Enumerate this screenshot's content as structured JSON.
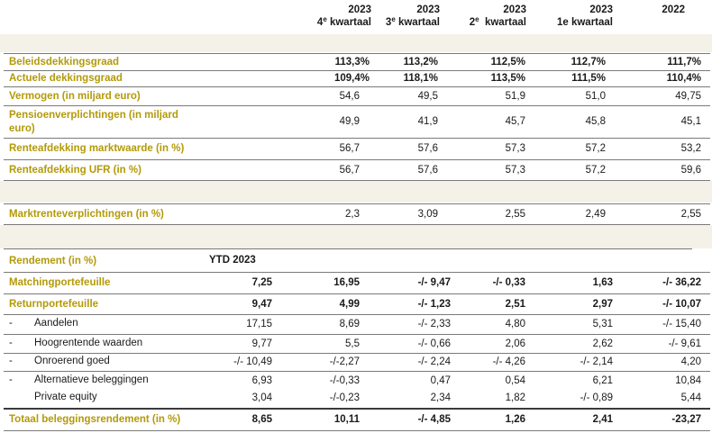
{
  "header": {
    "cols": [
      {
        "year": "2023",
        "quarter_num": "4",
        "quarter_sup": "e",
        "quarter_rest": " kwartaal"
      },
      {
        "year": "2023",
        "quarter_num": "3",
        "quarter_sup": "e",
        "quarter_rest": " kwartaal"
      },
      {
        "year": "2023",
        "quarter_num": "2",
        "quarter_sup": "e",
        "quarter_rest": "  kwartaal"
      },
      {
        "year": "2023",
        "quarter_num": "1e kwartaal",
        "quarter_sup": "",
        "quarter_rest": ""
      },
      {
        "year": "2022",
        "quarter_num": "",
        "quarter_sup": "",
        "quarter_rest": ""
      }
    ]
  },
  "top_rows": [
    {
      "label": "Beleidsdekkingsgraad",
      "values": [
        "113,3%",
        "113,2%",
        "112,5%",
        "112,7%",
        "111,7%"
      ]
    },
    {
      "label": "Actuele dekkingsgraad",
      "values": [
        "109,4%",
        "118,1%",
        "113,5%",
        "111,5%",
        "110,4%"
      ]
    },
    {
      "label": "Vermogen (in miljard euro)",
      "values": [
        "54,6",
        "49,5",
        "51,9",
        "51,0",
        "49,75"
      ]
    },
    {
      "label": "Pensioenverplichtingen (in miljard euro)",
      "label_line1": "Pensioenverplichtingen (in miljard",
      "label_line2": "euro)",
      "values": [
        "49,9",
        "41,9",
        "45,7",
        "45,8",
        "45,1"
      ]
    },
    {
      "label": "Renteafdekking marktwaarde (in %)",
      "values": [
        "56,7",
        "57,6",
        "57,3",
        "57,2",
        "53,2"
      ]
    },
    {
      "label": "Renteafdekking UFR (in %)",
      "values": [
        "56,7",
        "57,6",
        "57,3",
        "57,2",
        "59,6"
      ]
    },
    {
      "label": "Marktrenteverplichtingen (in %)",
      "values": [
        "2,3",
        "3,09",
        "2,55",
        "2,49",
        "2,55"
      ]
    }
  ],
  "rendement": {
    "label": "Rendement (in %)",
    "ytd_label": "YTD 2023"
  },
  "rend_rows": [
    {
      "dash": "",
      "label": "Matchingportefeuille",
      "values": [
        "7,25",
        "16,95",
        "-/- 9,47",
        "-/- 0,33",
        "1,63",
        "-/- 36,22"
      ],
      "bold": true
    },
    {
      "dash": "",
      "label": "Returnportefeuille",
      "values": [
        "9,47",
        "4,99",
        "-/- 1,23",
        "2,51",
        "2,97",
        "-/- 10,07"
      ],
      "bold": true
    },
    {
      "dash": "-",
      "label": "Aandelen",
      "values": [
        "17,15",
        "8,69",
        "-/- 2,33",
        "4,80",
        "5,31",
        "-/- 15,40"
      ],
      "bold": false
    },
    {
      "dash": "-",
      "label": "Hoogrentende waarden",
      "values": [
        "9,77",
        "5,5",
        "-/- 0,66",
        "2,06",
        "2,62",
        "-/- 9,61"
      ],
      "bold": false
    },
    {
      "dash": "-",
      "label": "Onroerend goed",
      "values": [
        "-/- 10,49",
        "-/-2,27",
        "-/- 2,24",
        "-/- 4,26",
        "-/- 2,14",
        "4,20"
      ],
      "bold": false
    },
    {
      "dash": "-",
      "label": "Alternatieve beleggingen",
      "values": [
        "6,93",
        "-/-0,33",
        "0,47",
        "0,54",
        "6,21",
        "10,84"
      ],
      "bold": false
    },
    {
      "dash": "",
      "label": "Private equity",
      "values": [
        "3,04",
        "-/-0,23",
        "2,34",
        "1,82",
        "-/- 0,89",
        "5,44"
      ],
      "bold": false
    },
    {
      "dash": "",
      "label": "Totaal beleggingsrendement (in %)",
      "values": [
        "8,65",
        "10,11",
        "-/- 4,85",
        "1,26",
        "2,41",
        "-23,27"
      ],
      "bold": true
    }
  ],
  "colors": {
    "accent": "#b39a08",
    "band": "#f3f1e8"
  }
}
